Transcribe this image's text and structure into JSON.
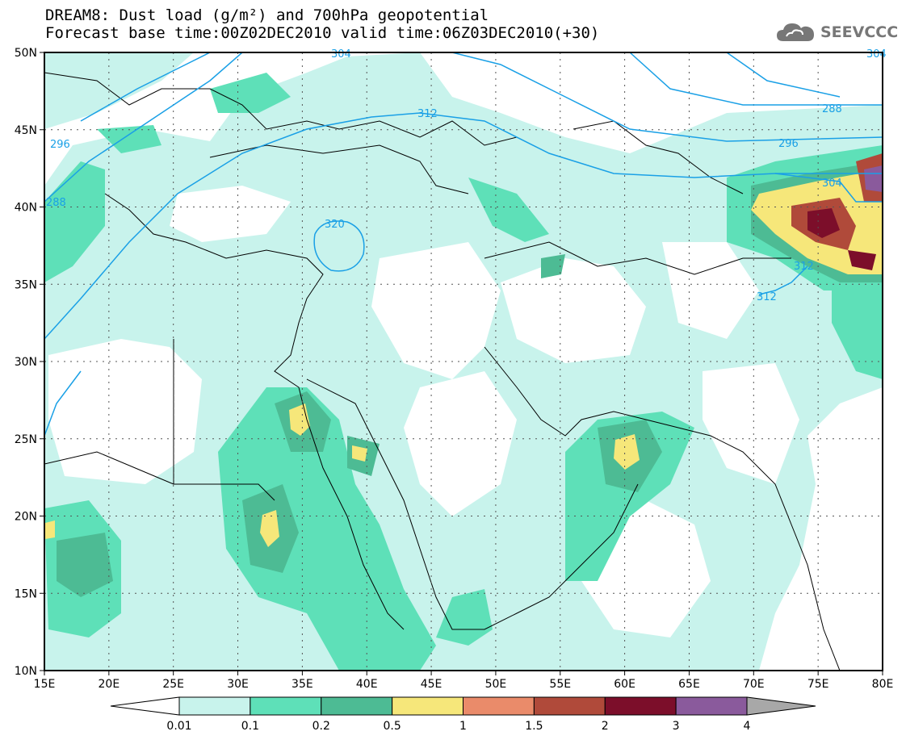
{
  "header": {
    "title_line1": "DREAM8: Dust load (g/m²) and 700hPa geopotential",
    "title_line2": "Forecast base time:00Z02DEC2010 valid time:06Z03DEC2010(+30)"
  },
  "logo": {
    "text": "SEEVCCC",
    "icon": "cloud-icon"
  },
  "map": {
    "lon_range": [
      15,
      80
    ],
    "lat_range": [
      10,
      50
    ],
    "lon_ticks": [
      "15E",
      "20E",
      "25E",
      "30E",
      "35E",
      "40E",
      "45E",
      "50E",
      "55E",
      "60E",
      "65E",
      "70E",
      "75E",
      "80E"
    ],
    "lat_ticks": [
      "10N",
      "15N",
      "20N",
      "25N",
      "30N",
      "35N",
      "40N",
      "45N",
      "50N"
    ],
    "grid": "dotted",
    "contour_color": "#1aa0e6",
    "contour_labels": [
      "304",
      "296",
      "288",
      "304",
      "312",
      "320",
      "312",
      "312",
      "296",
      "288",
      "296",
      "304",
      "312",
      "312"
    ]
  },
  "colorbar": {
    "labels": [
      "0.01",
      "0.1",
      "0.2",
      "0.5",
      "1",
      "1.5",
      "2",
      "3",
      "4"
    ],
    "colors": [
      "#c8f3ec",
      "#5ee0b8",
      "#4dbb94",
      "#f6e77a",
      "#ea8b6a",
      "#b04a3a",
      "#7c0e2a",
      "#8a5a9c",
      "#a8a8a8"
    ]
  }
}
